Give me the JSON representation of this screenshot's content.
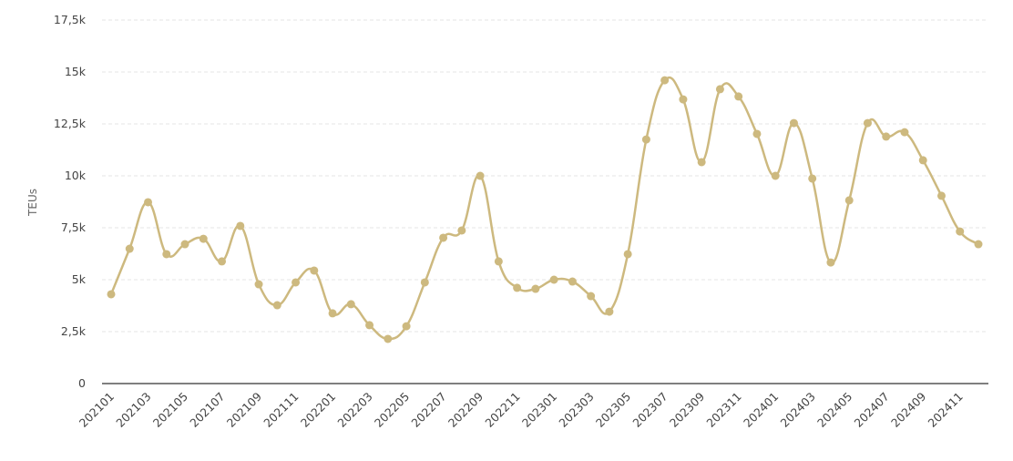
{
  "chart_data": {
    "type": "line",
    "title": "",
    "xlabel": "",
    "ylabel": "TEUs",
    "ylim": [
      0,
      17500
    ],
    "yticks": [
      0,
      2500,
      5000,
      7500,
      10000,
      12500,
      15000,
      17500
    ],
    "ytick_labels": [
      "0",
      "2,5k",
      "5k",
      "7,5k",
      "10k",
      "12,5k",
      "15k",
      "17,5k"
    ],
    "grid": true,
    "color": "#cdb97f",
    "x": [
      "202101",
      "202102",
      "202103",
      "202104",
      "202105",
      "202106",
      "202107",
      "202108",
      "202109",
      "202110",
      "202111",
      "202112",
      "202201",
      "202202",
      "202203",
      "202204",
      "202205",
      "202206",
      "202207",
      "202208",
      "202209",
      "202210",
      "202211",
      "202212",
      "202301",
      "202302",
      "202303",
      "202304",
      "202305",
      "202306",
      "202307",
      "202308",
      "202309",
      "202310",
      "202311",
      "202312",
      "202401",
      "202402",
      "202403",
      "202404",
      "202405",
      "202406",
      "202407",
      "202408",
      "202409",
      "202410",
      "202411",
      "202412"
    ],
    "values": [
      4300,
      6490,
      8730,
      6230,
      6710,
      6970,
      5880,
      7590,
      4780,
      3770,
      4870,
      5440,
      3380,
      3820,
      2810,
      2150,
      2760,
      4870,
      7020,
      7370,
      10000,
      5880,
      4610,
      4560,
      5000,
      4910,
      4210,
      3460,
      6230,
      11750,
      14600,
      13680,
      10660,
      14170,
      13820,
      12020,
      10000,
      12540,
      9870,
      5830,
      8820,
      12540,
      11890,
      12100,
      10750,
      9040,
      7320,
      6710
    ]
  }
}
